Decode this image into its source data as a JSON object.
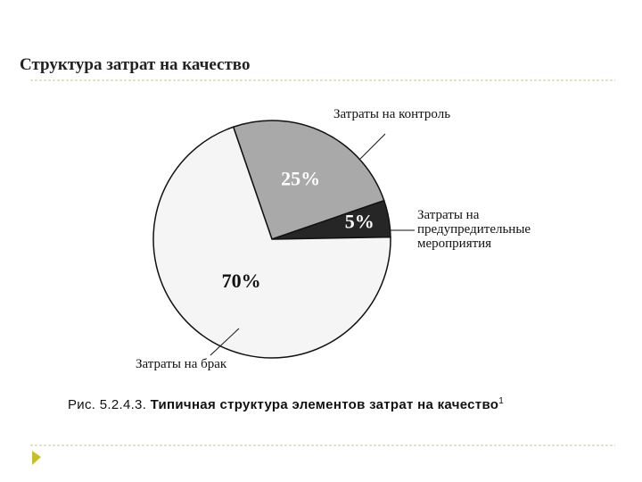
{
  "slide_title": "Структура затрат на качество",
  "caption": {
    "number": "Рис. 5.2.4.3.",
    "text": "Типичная структура элементов затрат на качество",
    "footnote": "1"
  },
  "chart_data": {
    "type": "pie",
    "categories": [
      "Затраты на контроль",
      "Затраты на предупредительные мероприятия",
      "Затраты на брак"
    ],
    "values": [
      25,
      5,
      70
    ],
    "value_labels": [
      "25%",
      "5%",
      "70%"
    ],
    "colors": [
      "#a9a9a9",
      "#262626",
      "#f5f5f5"
    ]
  }
}
